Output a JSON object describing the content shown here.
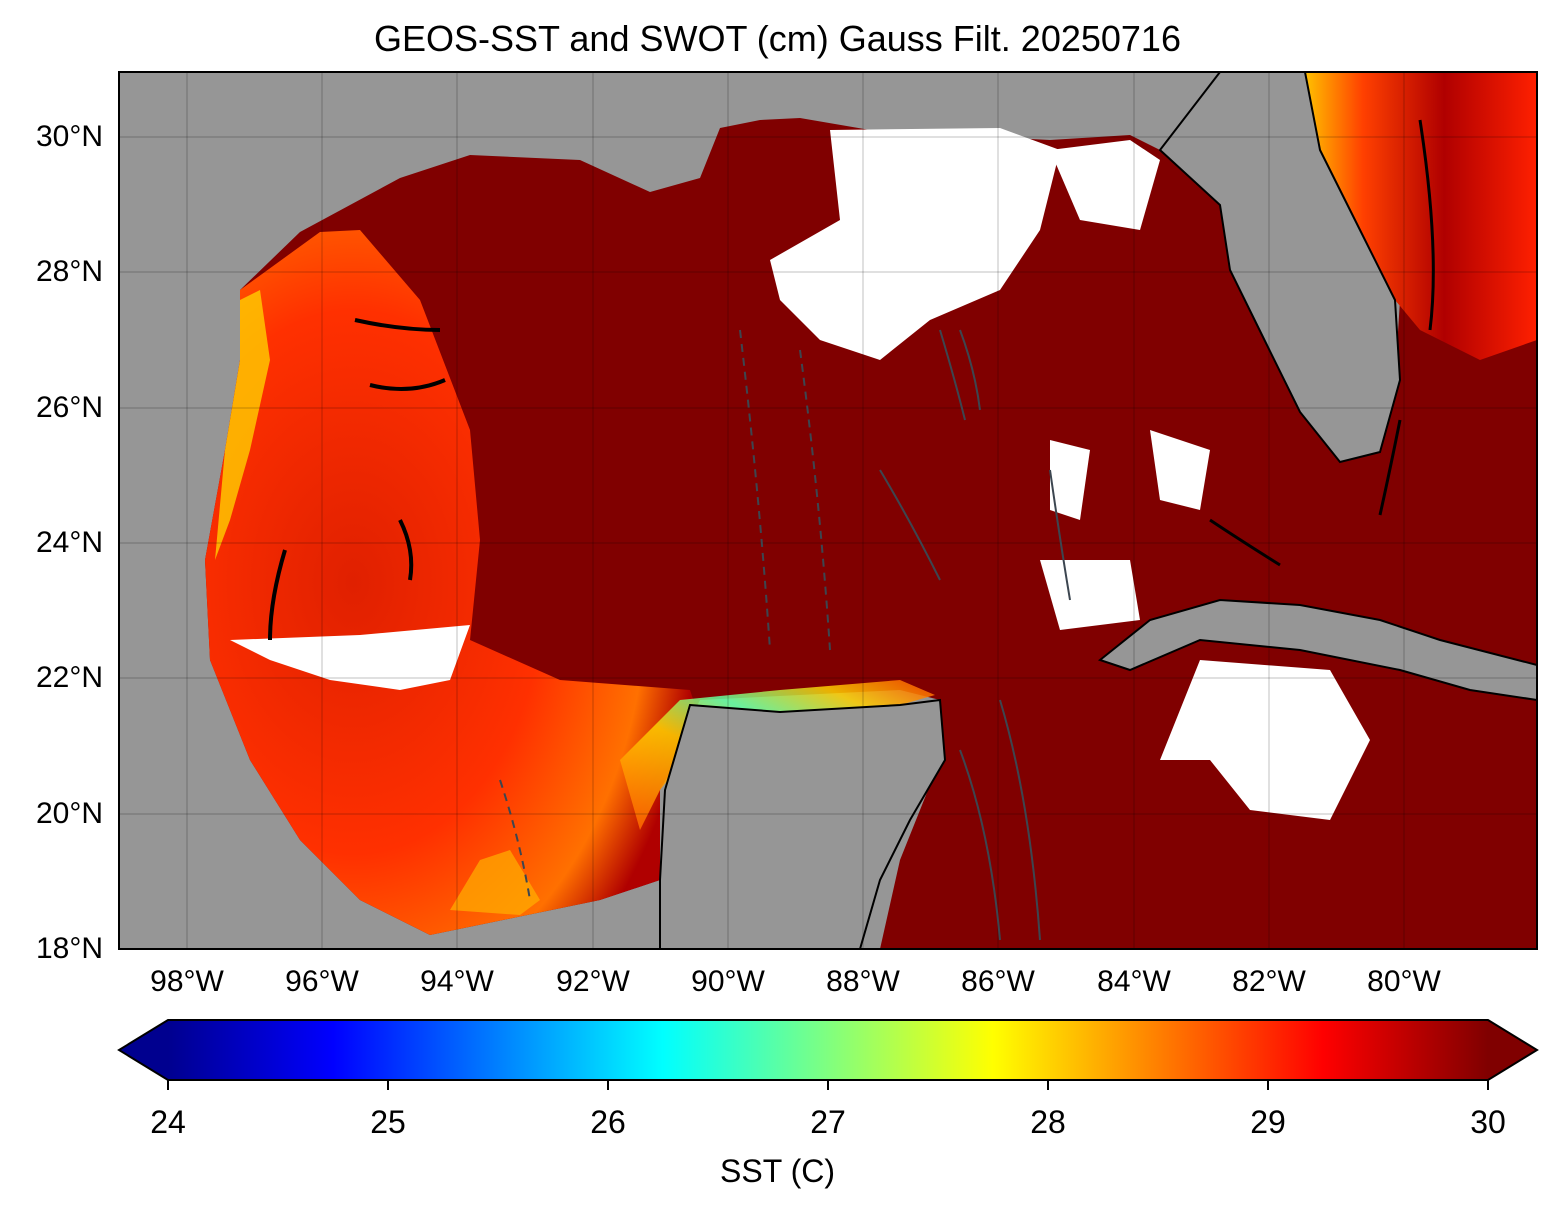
{
  "title": "GEOS-SST  and SWOT (cm) Gauss Filt. 20250716",
  "map": {
    "extent_lon": [
      -99,
      -78
    ],
    "extent_lat": [
      18,
      31
    ],
    "lat_ticks": [
      "30°N",
      "28°N",
      "26°N",
      "24°N",
      "22°N",
      "20°N",
      "18°N"
    ],
    "lon_ticks": [
      "98°W",
      "96°W",
      "94°W",
      "92°W",
      "90°W",
      "88°W",
      "86°W",
      "84°W",
      "82°W",
      "80°W"
    ],
    "land_color": "#969696",
    "warm_water_color": "#800000",
    "missing_color": "#ffffff",
    "contour_color": "#3c4650"
  },
  "colorbar": {
    "label": "SST (C)",
    "ticks": [
      "24",
      "25",
      "26",
      "27",
      "28",
      "29",
      "30"
    ],
    "range": [
      24,
      30
    ],
    "colormap": "jet",
    "extend": "both"
  }
}
